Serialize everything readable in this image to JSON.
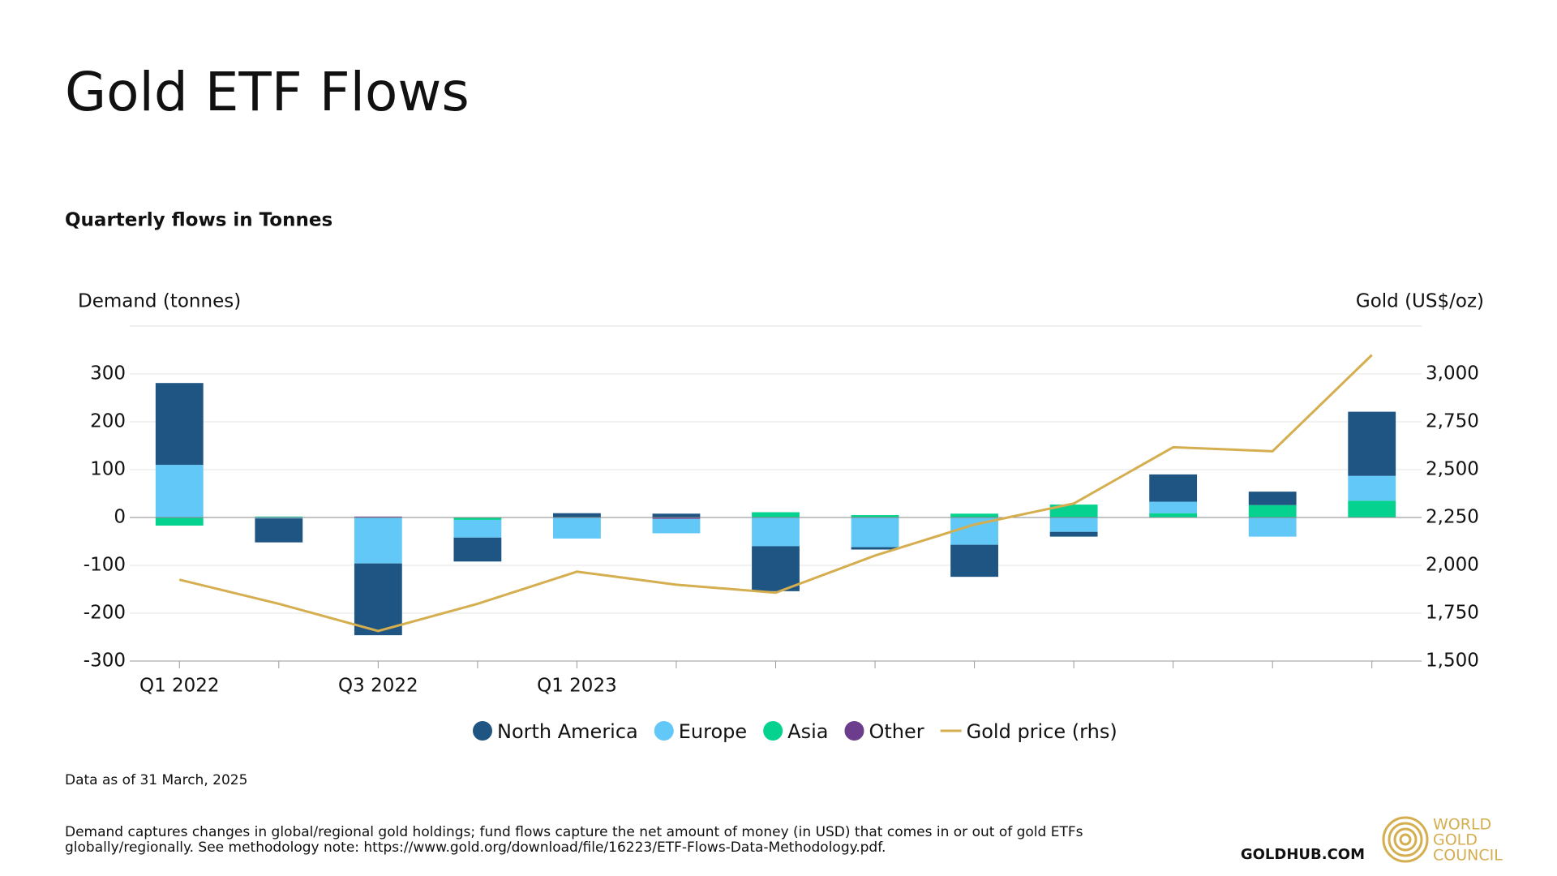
{
  "chart_data": {
    "type": "bar",
    "title": "Gold ETF Flows",
    "subtitle": "Quarterly flows in Tonnes",
    "y_label": "Demand (tonnes)",
    "y2_label": "Gold (US$/oz)",
    "categories": [
      "Q1 2022",
      null,
      "Q3 2022",
      null,
      "Q1 2023",
      null,
      null,
      null,
      null,
      null,
      null,
      null,
      null
    ],
    "series": [
      {
        "name": "North America",
        "color": "#1f5582",
        "values": [
          171,
          -50,
          -150,
          -50,
          9,
          8,
          -94,
          -5,
          -67,
          -10,
          57,
          28,
          134
        ]
      },
      {
        "name": "Europe",
        "color": "#62c8f7",
        "values": [
          110,
          -2,
          -96,
          -37,
          -44,
          -30,
          -60,
          -62,
          -57,
          -30,
          24,
          -40,
          52
        ]
      },
      {
        "name": "Asia",
        "color": "#05d28f",
        "values": [
          -17,
          2,
          0,
          -5,
          0,
          0,
          11,
          5,
          8,
          27,
          9,
          26,
          35
        ]
      },
      {
        "name": "Other",
        "color": "#6b3d8c",
        "values": [
          0,
          0,
          2,
          0,
          0,
          -3,
          0,
          0,
          0,
          0,
          0,
          0,
          0
        ]
      },
      {
        "name": "Gold price (rhs)",
        "type": "line",
        "axis": "y2",
        "color": "#d4ae4f",
        "values": [
          1925,
          1799,
          1657,
          1799,
          1967,
          1899,
          1857,
          2051,
          2213,
          2323,
          2617,
          2596,
          3099
        ]
      }
    ],
    "ylim": [
      -300,
      400
    ],
    "yticks": [
      -300,
      -200,
      -100,
      0,
      100,
      200,
      300
    ],
    "y2lim": [
      1500,
      3250
    ],
    "y2ticks": [
      {
        "value": 1500,
        "label": "1,500"
      },
      {
        "value": 1750,
        "label": "1,750"
      },
      {
        "value": 2000,
        "label": "2,000"
      },
      {
        "value": 2250,
        "label": "2,250"
      },
      {
        "value": 2500,
        "label": "2,500"
      },
      {
        "value": 2750,
        "label": "2,750"
      },
      {
        "value": 3000,
        "label": "3,000"
      }
    ],
    "grid": true,
    "legend": "bottom",
    "note": "Data as of 31 March, 2025",
    "footnote": [
      "Demand captures changes in global/regional gold holdings; fund flows capture the net amount of money (in USD) that comes in or out of gold ETFs",
      "globally/regionally. See methodology note: https://www.gold.org/download/file/16223/ETF-Flows-Data-Methodology.pdf."
    ],
    "source": "GOLDHUB.COM",
    "logo": [
      "WORLD",
      "GOLD",
      "COUNCIL"
    ]
  }
}
